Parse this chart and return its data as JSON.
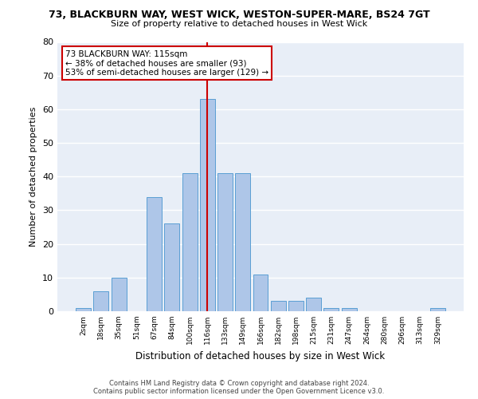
{
  "title": "73, BLACKBURN WAY, WEST WICK, WESTON-SUPER-MARE, BS24 7GT",
  "subtitle": "Size of property relative to detached houses in West Wick",
  "xlabel": "Distribution of detached houses by size in West Wick",
  "ylabel": "Number of detached properties",
  "bar_labels": [
    "2sqm",
    "18sqm",
    "35sqm",
    "51sqm",
    "67sqm",
    "84sqm",
    "100sqm",
    "116sqm",
    "133sqm",
    "149sqm",
    "166sqm",
    "182sqm",
    "198sqm",
    "215sqm",
    "231sqm",
    "247sqm",
    "264sqm",
    "280sqm",
    "296sqm",
    "313sqm",
    "329sqm"
  ],
  "bar_values": [
    1,
    6,
    10,
    0,
    34,
    26,
    41,
    63,
    41,
    41,
    11,
    3,
    3,
    4,
    1,
    1,
    0,
    0,
    0,
    0,
    1
  ],
  "bar_color": "#aec6e8",
  "bar_edge_color": "#5a9fd4",
  "highlight_index": 7,
  "highlight_line_color": "#cc0000",
  "annotation_line1": "73 BLACKBURN WAY: 115sqm",
  "annotation_line2": "← 38% of detached houses are smaller (93)",
  "annotation_line3": "53% of semi-detached houses are larger (129) →",
  "annotation_box_color": "#ffffff",
  "annotation_box_edge": "#cc0000",
  "ylim": [
    0,
    80
  ],
  "yticks": [
    0,
    10,
    20,
    30,
    40,
    50,
    60,
    70,
    80
  ],
  "bg_color": "#e8eef7",
  "grid_color": "#ffffff",
  "footer1": "Contains HM Land Registry data © Crown copyright and database right 2024.",
  "footer2": "Contains public sector information licensed under the Open Government Licence v3.0."
}
